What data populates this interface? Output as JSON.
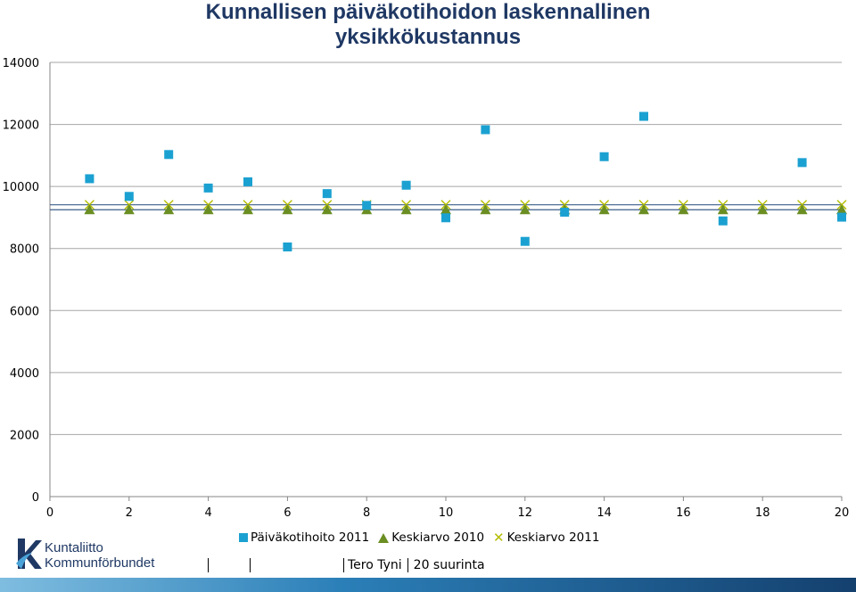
{
  "chart_data": {
    "type": "scatter",
    "title": "Kunnallisen päiväkotihoidon laskennallinen yksikkökustannus",
    "xlim": [
      0,
      20
    ],
    "ylim": [
      0,
      14000
    ],
    "x_ticks": [
      "0",
      "2",
      "4",
      "6",
      "8",
      "10",
      "12",
      "14",
      "16",
      "18",
      "20"
    ],
    "y_ticks": [
      "0",
      "2000",
      "4000",
      "6000",
      "8000",
      "10000",
      "12000",
      "14000"
    ],
    "series": [
      {
        "name": "Päiväkotihoito 2011",
        "marker": "square",
        "color": "#1ba1d1",
        "x": [
          1,
          2,
          3,
          4,
          5,
          6,
          7,
          8,
          9,
          10,
          11,
          12,
          13,
          14,
          15,
          16,
          17,
          18,
          19,
          20
        ],
        "y": [
          10250,
          9680,
          11030,
          9950,
          10150,
          8050,
          9770,
          9390,
          10040,
          8990,
          11830,
          8230,
          9170,
          10960,
          12260,
          null,
          8890,
          null,
          10770,
          9010
        ]
      },
      {
        "name": "Keskiarvo 2010",
        "marker": "triangle",
        "color": "#6b8e23",
        "x": [
          1,
          2,
          3,
          4,
          5,
          6,
          7,
          8,
          9,
          10,
          11,
          12,
          13,
          14,
          15,
          16,
          17,
          18,
          19,
          20
        ],
        "y": [
          9250,
          9250,
          9250,
          9250,
          9250,
          9250,
          9250,
          9250,
          9250,
          9250,
          9250,
          9250,
          9250,
          9250,
          9250,
          9250,
          9250,
          9250,
          9250,
          9250
        ]
      },
      {
        "name": "Keskiarvo 2011",
        "marker": "x",
        "color": "#b5bd00",
        "x": [
          1,
          2,
          3,
          4,
          5,
          6,
          7,
          8,
          9,
          10,
          11,
          12,
          13,
          14,
          15,
          16,
          17,
          18,
          19,
          20
        ],
        "y": [
          9410,
          9410,
          9410,
          9410,
          9410,
          9410,
          9410,
          9410,
          9410,
          9410,
          9410,
          9410,
          9410,
          9410,
          9410,
          9410,
          9410,
          9410,
          9410,
          9410
        ]
      }
    ],
    "grid": true,
    "legend": "bottom"
  },
  "logo": {
    "line1": "Kuntaliitto",
    "line2": "Kommunförbundet"
  },
  "footer": {
    "author": "Tero Tyni",
    "page": "20 suurinta"
  }
}
